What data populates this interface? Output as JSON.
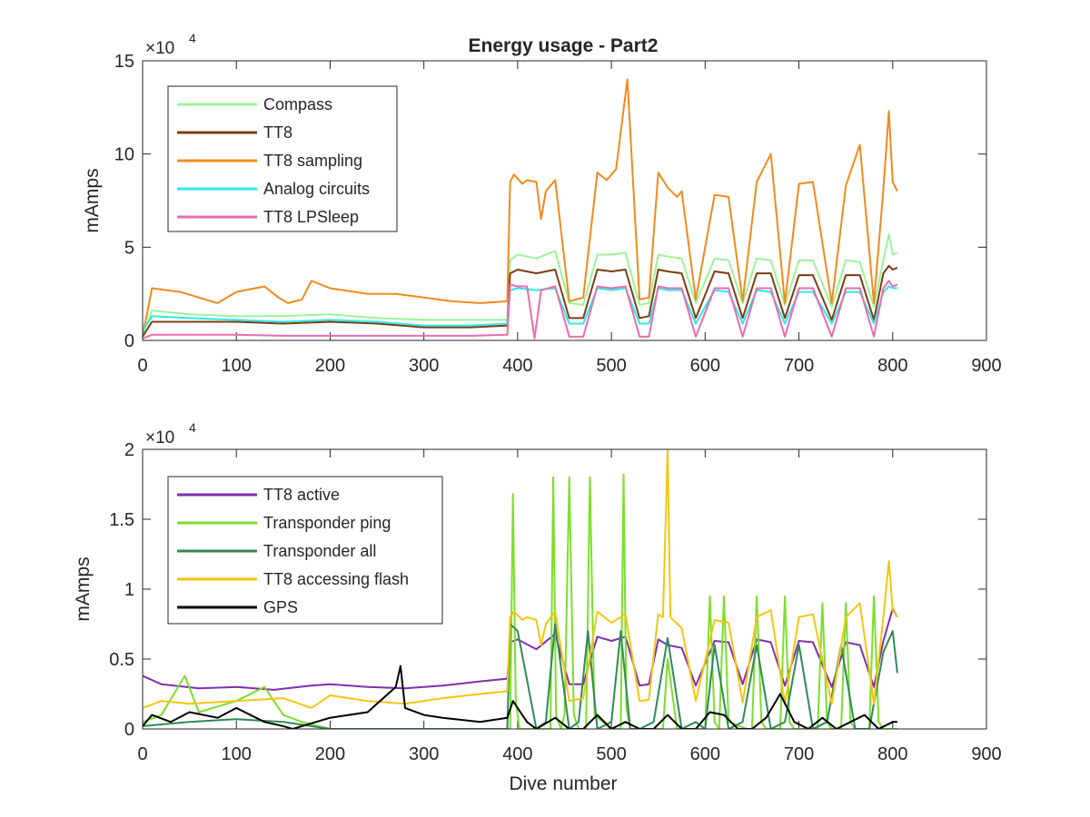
{
  "chart_data": [
    {
      "type": "line",
      "title": "Energy usage - Part2",
      "xlabel": "",
      "ylabel": "mAmps",
      "xlim": [
        0,
        900
      ],
      "ylim": [
        0,
        15
      ],
      "y_exponent": {
        "base": "×10",
        "power": "4"
      },
      "xticks": [
        "0",
        "100",
        "200",
        "300",
        "400",
        "500",
        "600",
        "700",
        "800",
        "900"
      ],
      "yticks": [
        "0",
        "5",
        "10",
        "15"
      ],
      "grid": false,
      "legend_position": "top-left",
      "series": [
        {
          "name": "Compass",
          "color": "#9df39a",
          "x": [
            0,
            10,
            50,
            100,
            150,
            200,
            250,
            300,
            350,
            389,
            392,
            400,
            420,
            440,
            455,
            470,
            485,
            500,
            515,
            530,
            540,
            550,
            560,
            575,
            590,
            610,
            625,
            640,
            655,
            670,
            685,
            700,
            715,
            735,
            750,
            765,
            780,
            790,
            796,
            800,
            805
          ],
          "values": [
            0.3,
            1.6,
            1.4,
            1.3,
            1.3,
            1.4,
            1.2,
            1.1,
            1.1,
            1.1,
            4.3,
            4.6,
            4.4,
            4.8,
            2.0,
            1.9,
            4.6,
            4.6,
            4.7,
            1.9,
            2.0,
            4.6,
            4.5,
            4.4,
            2.0,
            4.4,
            4.3,
            2.0,
            4.4,
            4.3,
            1.9,
            4.3,
            4.3,
            1.8,
            4.3,
            4.2,
            1.8,
            4.3,
            5.7,
            4.6,
            4.7
          ]
        },
        {
          "name": "TT8",
          "color": "#7b3d12",
          "x": [
            0,
            10,
            50,
            100,
            150,
            200,
            250,
            300,
            350,
            389,
            392,
            400,
            420,
            440,
            455,
            470,
            485,
            500,
            515,
            530,
            540,
            550,
            560,
            575,
            590,
            610,
            625,
            640,
            655,
            670,
            685,
            700,
            715,
            735,
            750,
            765,
            780,
            790,
            796,
            800,
            805
          ],
          "values": [
            0.2,
            1.0,
            1.0,
            1.0,
            0.9,
            1.0,
            0.9,
            0.7,
            0.7,
            0.8,
            3.6,
            3.8,
            3.6,
            3.8,
            1.2,
            1.2,
            3.8,
            3.7,
            3.8,
            1.2,
            1.3,
            3.8,
            3.7,
            3.6,
            1.2,
            3.7,
            3.6,
            1.2,
            3.6,
            3.6,
            1.2,
            3.5,
            3.5,
            1.1,
            3.5,
            3.5,
            1.1,
            3.6,
            4.0,
            3.8,
            3.9
          ]
        },
        {
          "name": "TT8 sampling",
          "color": "#f08a1c",
          "x": [
            0,
            5,
            10,
            40,
            80,
            100,
            130,
            145,
            155,
            170,
            180,
            200,
            240,
            270,
            300,
            330,
            360,
            389,
            392,
            396,
            405,
            410,
            420,
            425,
            430,
            440,
            455,
            470,
            485,
            495,
            505,
            517,
            530,
            540,
            550,
            560,
            570,
            575,
            590,
            610,
            625,
            640,
            655,
            670,
            685,
            700,
            715,
            735,
            750,
            765,
            780,
            790,
            796,
            800,
            805
          ],
          "values": [
            0.3,
            1.5,
            2.8,
            2.6,
            2.0,
            2.6,
            2.9,
            2.3,
            2.0,
            2.2,
            3.2,
            2.8,
            2.5,
            2.5,
            2.3,
            2.1,
            2.0,
            2.1,
            8.5,
            8.9,
            8.4,
            8.6,
            8.5,
            6.5,
            8.0,
            8.6,
            2.1,
            2.3,
            9.0,
            8.6,
            9.2,
            14.0,
            2.2,
            2.3,
            9.0,
            8.2,
            7.7,
            8.0,
            2.2,
            7.8,
            7.7,
            2.1,
            8.5,
            10.0,
            2.0,
            8.4,
            8.5,
            2.0,
            8.3,
            10.5,
            2.0,
            8.1,
            12.3,
            8.5,
            8.0
          ]
        },
        {
          "name": "Analog circuits",
          "color": "#2ee8e8",
          "x": [
            0,
            10,
            50,
            100,
            150,
            200,
            250,
            300,
            350,
            389,
            392,
            400,
            420,
            440,
            455,
            470,
            485,
            500,
            515,
            530,
            540,
            550,
            560,
            575,
            590,
            610,
            625,
            640,
            655,
            670,
            685,
            700,
            715,
            735,
            750,
            765,
            780,
            790,
            796,
            800,
            805
          ],
          "values": [
            0.5,
            1.3,
            1.2,
            1.1,
            1.0,
            1.1,
            1.0,
            0.8,
            0.8,
            0.9,
            2.7,
            2.8,
            2.7,
            2.8,
            0.9,
            0.9,
            2.8,
            2.7,
            2.8,
            0.9,
            0.9,
            2.8,
            2.7,
            2.7,
            0.9,
            2.7,
            2.6,
            0.9,
            2.7,
            2.6,
            0.9,
            2.6,
            2.6,
            0.9,
            2.6,
            2.6,
            0.9,
            2.6,
            2.9,
            2.8,
            2.8
          ]
        },
        {
          "name": "TT8 LPSleep",
          "color": "#e96bae",
          "x": [
            0,
            10,
            50,
            100,
            150,
            200,
            250,
            300,
            350,
            389,
            392,
            400,
            410,
            418,
            425,
            440,
            455,
            470,
            485,
            500,
            515,
            530,
            540,
            550,
            560,
            575,
            590,
            610,
            625,
            640,
            655,
            670,
            685,
            700,
            715,
            735,
            750,
            765,
            780,
            790,
            796,
            800,
            805
          ],
          "values": [
            0.1,
            0.3,
            0.3,
            0.3,
            0.25,
            0.25,
            0.25,
            0.25,
            0.25,
            0.3,
            3.0,
            2.9,
            2.9,
            0.1,
            2.7,
            2.9,
            0.2,
            0.2,
            2.9,
            2.8,
            2.9,
            0.2,
            0.2,
            2.9,
            2.8,
            2.8,
            0.2,
            2.8,
            2.8,
            0.2,
            2.8,
            2.8,
            0.2,
            2.8,
            2.8,
            0.2,
            2.8,
            2.8,
            0.2,
            2.8,
            3.2,
            2.9,
            3.0
          ]
        }
      ]
    },
    {
      "type": "line",
      "title": "",
      "xlabel": "Dive number",
      "ylabel": "mAmps",
      "xlim": [
        0,
        900
      ],
      "ylim": [
        0,
        2
      ],
      "y_exponent": {
        "base": "×10",
        "power": "4"
      },
      "xticks": [
        "0",
        "100",
        "200",
        "300",
        "400",
        "500",
        "600",
        "700",
        "800",
        "900"
      ],
      "yticks": [
        "0",
        "0.5",
        "1",
        "1.5",
        "2"
      ],
      "grid": false,
      "legend_position": "top-left",
      "series": [
        {
          "name": "TT8 active",
          "color": "#7e2fb0",
          "x": [
            0,
            20,
            60,
            100,
            140,
            180,
            200,
            240,
            280,
            320,
            360,
            389,
            392,
            400,
            420,
            440,
            455,
            470,
            485,
            500,
            515,
            530,
            540,
            550,
            560,
            575,
            590,
            610,
            625,
            640,
            655,
            670,
            685,
            700,
            715,
            735,
            750,
            765,
            780,
            790,
            800,
            805
          ],
          "values": [
            0.38,
            0.32,
            0.29,
            0.3,
            0.28,
            0.31,
            0.32,
            0.3,
            0.29,
            0.31,
            0.34,
            0.36,
            0.62,
            0.64,
            0.57,
            0.68,
            0.32,
            0.32,
            0.66,
            0.63,
            0.66,
            0.31,
            0.32,
            0.64,
            0.6,
            0.58,
            0.31,
            0.63,
            0.62,
            0.32,
            0.64,
            0.62,
            0.31,
            0.63,
            0.62,
            0.3,
            0.62,
            0.6,
            0.3,
            0.63,
            0.86,
            0.8
          ]
        },
        {
          "name": "Transponder ping",
          "color": "#7cde2c",
          "x": [
            0,
            20,
            45,
            60,
            100,
            130,
            150,
            170,
            200,
            389,
            392,
            395,
            398,
            402,
            405,
            415,
            420,
            435,
            438,
            441,
            446,
            450,
            455,
            460,
            465,
            470,
            473,
            477,
            482,
            500,
            510,
            513,
            516,
            520,
            525,
            545,
            555,
            560,
            570,
            575,
            580,
            600,
            605,
            610,
            615,
            620,
            625,
            645,
            650,
            655,
            660,
            665,
            680,
            685,
            690,
            695,
            700,
            720,
            725,
            730,
            735,
            745,
            750,
            755,
            760,
            775,
            780,
            785,
            790,
            800,
            805
          ],
          "values": [
            0.05,
            0.1,
            0.38,
            0.12,
            0.2,
            0.3,
            0.1,
            0.05,
            0.0,
            0.0,
            0.0,
            1.68,
            0.2,
            0.0,
            0.0,
            0.0,
            0.0,
            0.0,
            1.8,
            0.1,
            0.0,
            0.1,
            1.8,
            0.1,
            0.0,
            0.0,
            0.0,
            1.8,
            0.1,
            0.0,
            0.0,
            1.82,
            0.15,
            0.0,
            0.0,
            0.0,
            0.0,
            0.5,
            0.0,
            0.0,
            0.0,
            0.0,
            0.95,
            0.05,
            0.0,
            0.95,
            0.05,
            0.0,
            0.0,
            0.95,
            0.05,
            0.0,
            0.0,
            0.95,
            0.05,
            0.0,
            0.0,
            0.0,
            0.9,
            0.05,
            0.0,
            0.0,
            0.9,
            0.05,
            0.0,
            0.0,
            0.95,
            0.05,
            0.0,
            0.0,
            0.0
          ]
        },
        {
          "name": "Transponder all",
          "color": "#2f8a57",
          "x": [
            0,
            50,
            100,
            150,
            200,
            300,
            389,
            392,
            400,
            420,
            430,
            440,
            455,
            465,
            475,
            485,
            500,
            510,
            520,
            530,
            545,
            560,
            575,
            590,
            600,
            610,
            625,
            640,
            655,
            670,
            685,
            700,
            715,
            730,
            745,
            760,
            775,
            790,
            800,
            805
          ],
          "values": [
            0.02,
            0.05,
            0.07,
            0.05,
            0.0,
            0.0,
            0.0,
            0.75,
            0.7,
            0.0,
            0.05,
            0.75,
            0.0,
            0.05,
            0.7,
            0.0,
            0.05,
            0.7,
            0.0,
            0.0,
            0.05,
            0.65,
            0.0,
            0.05,
            0.0,
            0.6,
            0.0,
            0.05,
            0.6,
            0.0,
            0.05,
            0.6,
            0.0,
            0.05,
            0.6,
            0.0,
            0.0,
            0.55,
            0.7,
            0.4
          ]
        },
        {
          "name": "TT8 accessing flash",
          "color": "#f5c50f",
          "x": [
            0,
            20,
            50,
            100,
            150,
            180,
            200,
            240,
            280,
            320,
            360,
            389,
            392,
            396,
            405,
            410,
            420,
            425,
            430,
            440,
            455,
            470,
            485,
            500,
            515,
            530,
            540,
            550,
            555,
            560,
            563,
            575,
            590,
            610,
            625,
            640,
            655,
            670,
            685,
            700,
            715,
            735,
            750,
            765,
            780,
            790,
            796,
            800,
            805
          ],
          "values": [
            0.15,
            0.2,
            0.18,
            0.2,
            0.22,
            0.15,
            0.24,
            0.2,
            0.18,
            0.22,
            0.25,
            0.27,
            0.8,
            0.84,
            0.78,
            0.8,
            0.78,
            0.6,
            0.75,
            0.84,
            0.2,
            0.22,
            0.84,
            0.76,
            0.82,
            0.2,
            0.21,
            0.82,
            0.8,
            2.0,
            0.8,
            0.72,
            0.2,
            0.78,
            0.76,
            0.19,
            0.8,
            0.85,
            0.18,
            0.8,
            0.82,
            0.18,
            0.8,
            0.9,
            0.18,
            0.8,
            1.2,
            0.85,
            0.8
          ]
        },
        {
          "name": "GPS",
          "color": "#000000",
          "x": [
            0,
            10,
            30,
            50,
            80,
            100,
            130,
            150,
            160,
            200,
            240,
            270,
            275,
            280,
            300,
            320,
            360,
            389,
            395,
            410,
            420,
            440,
            455,
            470,
            485,
            500,
            515,
            530,
            545,
            560,
            575,
            590,
            605,
            620,
            635,
            650,
            665,
            680,
            695,
            710,
            725,
            740,
            755,
            770,
            785,
            800,
            805
          ],
          "values": [
            0.02,
            0.1,
            0.05,
            0.12,
            0.08,
            0.15,
            0.05,
            0.02,
            0.0,
            0.08,
            0.12,
            0.3,
            0.45,
            0.15,
            0.1,
            0.08,
            0.05,
            0.08,
            0.2,
            0.05,
            0.0,
            0.08,
            0.0,
            0.0,
            0.1,
            0.0,
            0.05,
            0.0,
            0.0,
            0.1,
            0.0,
            0.0,
            0.12,
            0.1,
            0.0,
            0.0,
            0.08,
            0.25,
            0.05,
            0.0,
            0.08,
            0.0,
            0.05,
            0.1,
            0.0,
            0.05,
            0.05
          ]
        }
      ]
    }
  ]
}
